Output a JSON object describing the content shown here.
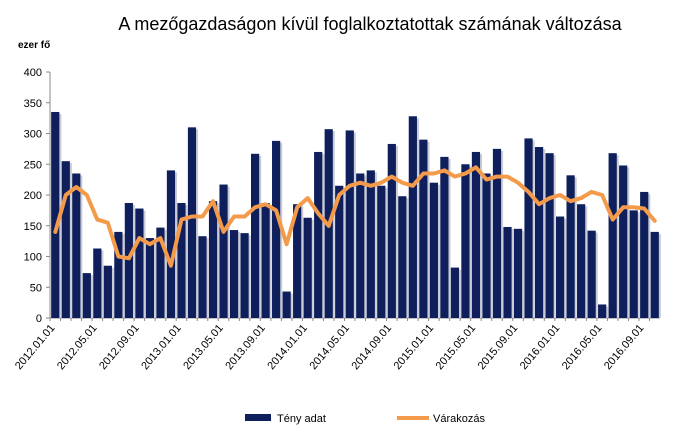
{
  "chart_data": {
    "type": "bar",
    "title": "A mezőgazdaságon  kívül foglalkoztatottak számának változása",
    "y_axis_label": "ezer fő",
    "categories": [
      "2012.01.01",
      null,
      null,
      null,
      "2012.05.01",
      null,
      null,
      null,
      "2012.09.01",
      null,
      null,
      null,
      "2013.01.01",
      null,
      null,
      null,
      "2013.05.01",
      null,
      null,
      null,
      "2013.09.01",
      null,
      null,
      null,
      "2014.01.01",
      null,
      null,
      null,
      "2014.05.01",
      null,
      null,
      null,
      "2014.09.01",
      null,
      null,
      null,
      "2015.01.01",
      null,
      null,
      null,
      "2015.05.01",
      null,
      null,
      null,
      "2015.09.01",
      null,
      null,
      null,
      "2016.01.01",
      null,
      null,
      null,
      "2016.05.01",
      null,
      null,
      null,
      "2016.09.01",
      null
    ],
    "series": [
      {
        "name": "Tény adat",
        "type": "bar",
        "color": "#0e1f5b",
        "values": [
          335,
          255,
          235,
          73,
          113,
          85,
          140,
          187,
          178,
          130,
          147,
          240,
          187,
          310,
          133,
          190,
          217,
          143,
          138,
          267,
          187,
          288,
          43,
          185,
          163,
          270,
          307,
          215,
          305,
          235,
          240,
          215,
          283,
          198,
          328,
          290,
          220,
          262,
          82,
          250,
          270,
          235,
          275,
          148,
          145,
          292,
          278,
          268,
          165,
          232,
          185,
          142,
          22,
          268,
          248,
          175,
          205,
          140
        ]
      },
      {
        "name": "Várakozás",
        "type": "line",
        "color": "#f39a4b",
        "values": [
          140,
          200,
          213,
          200,
          160,
          155,
          100,
          97,
          130,
          120,
          130,
          85,
          160,
          165,
          165,
          190,
          140,
          165,
          165,
          180,
          185,
          175,
          120,
          180,
          195,
          170,
          150,
          200,
          215,
          220,
          215,
          220,
          230,
          220,
          215,
          235,
          235,
          240,
          230,
          235,
          245,
          225,
          230,
          230,
          220,
          205,
          185,
          195,
          200,
          190,
          195,
          205,
          200,
          160,
          180,
          180,
          178,
          158
        ]
      }
    ],
    "ylim": [
      0,
      400
    ],
    "yticks": [
      0,
      50,
      100,
      150,
      200,
      250,
      300,
      350,
      400
    ],
    "grid": false,
    "legend": "bottom"
  }
}
